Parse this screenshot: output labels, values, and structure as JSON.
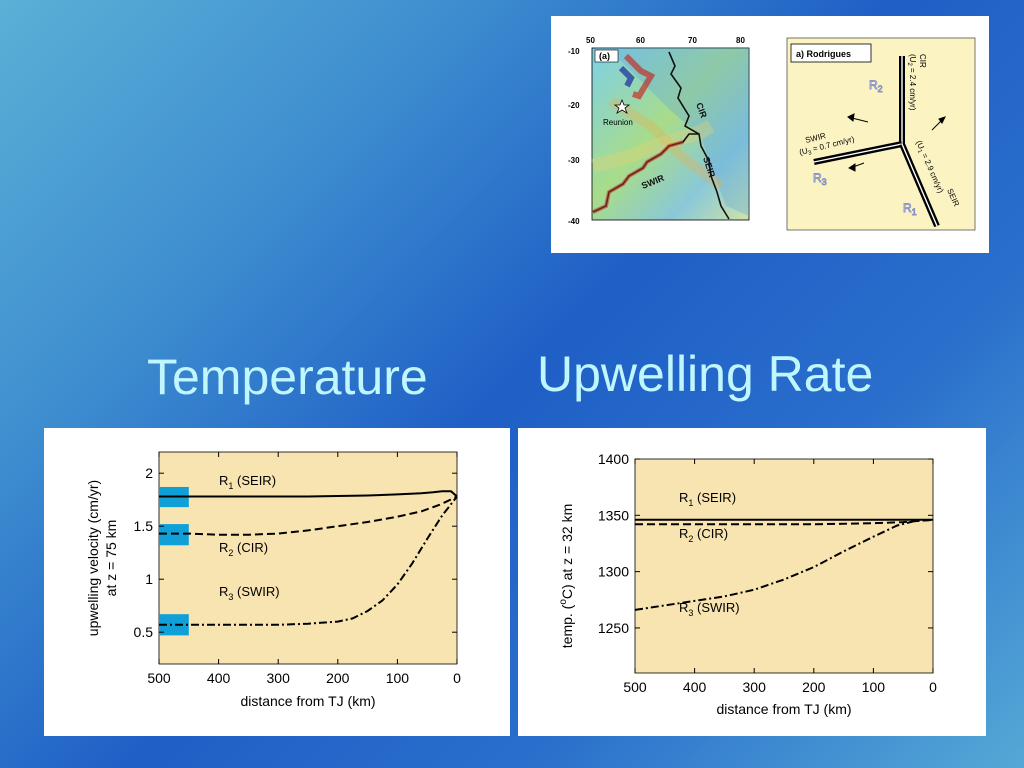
{
  "headings": {
    "left": "Temperature",
    "right": "Upwelling Rate"
  },
  "map": {
    "panel_label": "(a)",
    "x_ticks": [
      "50",
      "60",
      "70",
      "80"
    ],
    "y_ticks": [
      "-10",
      "-20",
      "-30",
      "-40"
    ],
    "labels": {
      "reunion": "Reunion",
      "cir": "CIR",
      "swir": "SWIR",
      "seir": "SEIR"
    }
  },
  "schematic": {
    "title": "a) Rodrigues",
    "ridge_labels": {
      "r1": "R",
      "r1_sub": "1",
      "r2": "R",
      "r2_sub": "2",
      "r3": "R",
      "r3_sub": "3"
    },
    "text": {
      "cir_name": "CIR",
      "cir_rate_a": "(U",
      "cir_rate_sub": "2",
      "cir_rate_b": " = 2.4 cm/yr)",
      "swir_name": "SWIR",
      "swir_rate_a": "(U",
      "swir_rate_sub": "3",
      "swir_rate_b": " = 0.7 cm/yr)",
      "seir_name": "SEIR",
      "seir_rate_a": "(U",
      "seir_rate_sub": "1",
      "seir_rate_b": " = 2.9 cm/yr)"
    }
  },
  "chart_data": [
    {
      "type": "line",
      "ylabel_line1": "upwelling velocity (cm/yr)",
      "ylabel_line2": "at z = 75 km",
      "xlabel": "distance from TJ (km)",
      "xlim": [
        500,
        0
      ],
      "ylim": [
        0.2,
        2.2
      ],
      "x_ticks": [
        500,
        400,
        300,
        200,
        100,
        0
      ],
      "y_ticks": [
        0.5,
        1,
        1.5,
        2
      ],
      "y_tick_labels": [
        "0.5",
        "1",
        "1.5",
        "2"
      ],
      "series_labels": [
        {
          "name": "R",
          "sub": "1",
          "suffix": " (SEIR)"
        },
        {
          "name": "R",
          "sub": "2",
          "suffix": " (CIR)"
        },
        {
          "name": "R",
          "sub": "3",
          "suffix": " (SWIR)"
        }
      ],
      "series": [
        {
          "name": "R1 (SEIR)",
          "style": "solid",
          "x": [
            500,
            450,
            400,
            350,
            300,
            250,
            200,
            150,
            100,
            60,
            40,
            25,
            10,
            0
          ],
          "y": [
            1.78,
            1.78,
            1.78,
            1.78,
            1.78,
            1.78,
            1.785,
            1.79,
            1.8,
            1.81,
            1.82,
            1.83,
            1.83,
            1.78
          ]
        },
        {
          "name": "R2 (CIR)",
          "style": "dashed",
          "x": [
            500,
            450,
            400,
            350,
            300,
            250,
            200,
            150,
            100,
            60,
            30,
            15,
            0
          ],
          "y": [
            1.43,
            1.43,
            1.42,
            1.42,
            1.43,
            1.46,
            1.5,
            1.54,
            1.59,
            1.64,
            1.7,
            1.74,
            1.78
          ]
        },
        {
          "name": "R3 (SWIR)",
          "style": "dashdot",
          "x": [
            500,
            450,
            400,
            350,
            300,
            250,
            200,
            175,
            150,
            125,
            100,
            75,
            50,
            25,
            0
          ],
          "y": [
            0.57,
            0.57,
            0.57,
            0.57,
            0.57,
            0.58,
            0.6,
            0.63,
            0.7,
            0.8,
            0.95,
            1.15,
            1.38,
            1.6,
            1.78
          ]
        }
      ],
      "observed_bars": [
        {
          "x_from": 500,
          "x_to": 450,
          "y_from": 1.68,
          "y_to": 1.87
        },
        {
          "x_from": 500,
          "x_to": 450,
          "y_from": 1.32,
          "y_to": 1.52
        },
        {
          "x_from": 500,
          "x_to": 450,
          "y_from": 0.47,
          "y_to": 0.67
        }
      ],
      "colors": {
        "background": "#f8e4b0",
        "bar": "#0fa0d8",
        "line": "#000000"
      }
    },
    {
      "type": "line",
      "ylabel_a": "temp. (",
      "ylabel_sup": "o",
      "ylabel_b": "C) at z = 32 km",
      "xlabel": "distance from TJ (km)",
      "xlim": [
        500,
        0
      ],
      "ylim": [
        1210,
        1400
      ],
      "x_ticks": [
        500,
        400,
        300,
        200,
        100,
        0
      ],
      "y_ticks": [
        1250,
        1300,
        1350,
        1400
      ],
      "series_labels": [
        {
          "name": "R",
          "sub": "1",
          "suffix": " (SEIR)"
        },
        {
          "name": "R",
          "sub": "2",
          "suffix": " (CIR)"
        },
        {
          "name": "R",
          "sub": "3",
          "suffix": " (SWIR)"
        }
      ],
      "series": [
        {
          "name": "R1 (SEIR)",
          "style": "solid",
          "x": [
            500,
            400,
            300,
            200,
            100,
            50,
            0
          ],
          "y": [
            1346,
            1346,
            1346,
            1346,
            1346,
            1346,
            1346
          ]
        },
        {
          "name": "R2 (CIR)",
          "style": "dashed",
          "x": [
            500,
            400,
            300,
            200,
            100,
            50,
            0
          ],
          "y": [
            1342,
            1342,
            1342,
            1342,
            1343,
            1344,
            1346
          ]
        },
        {
          "name": "R3 (SWIR)",
          "style": "dashdot",
          "x": [
            500,
            450,
            400,
            350,
            300,
            250,
            200,
            150,
            100,
            60,
            30,
            0
          ],
          "y": [
            1266,
            1270,
            1274,
            1278,
            1284,
            1293,
            1304,
            1318,
            1331,
            1341,
            1345,
            1346
          ]
        }
      ],
      "colors": {
        "background": "#f8e4b0",
        "line": "#000000"
      }
    }
  ]
}
